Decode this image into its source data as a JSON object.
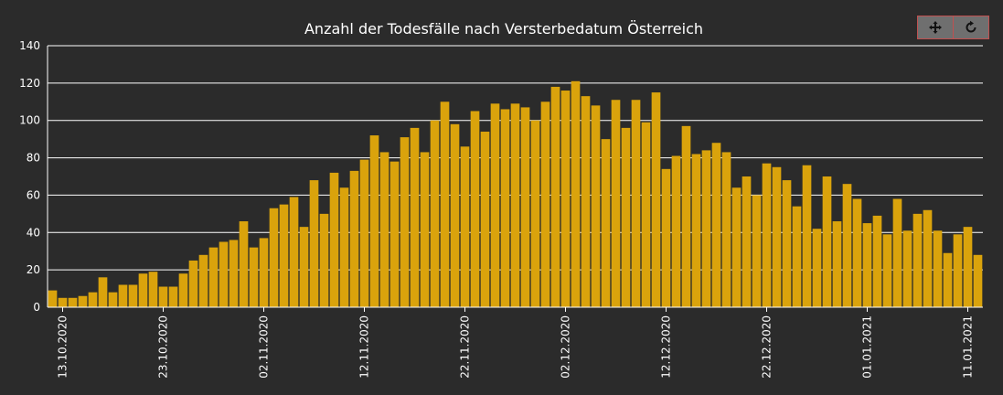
{
  "toolbar": {
    "pan_icon": "move-icon",
    "reset_icon": "reset-icon"
  },
  "chart_data": {
    "type": "bar",
    "title": "Anzahl der Todesfälle nach Versterbedatum Österreich",
    "xlabel": "",
    "ylabel": "",
    "ylim": [
      0,
      140
    ],
    "yticks": [
      0,
      20,
      40,
      60,
      80,
      100,
      120,
      140
    ],
    "grid": true,
    "bar_color": "#daa30c",
    "background": "#2b2b2b",
    "x_tick_labels": [
      "13.10.2020",
      "23.10.2020",
      "02.11.2020",
      "12.11.2020",
      "22.11.2020",
      "02.12.2020",
      "12.12.2020",
      "22.12.2020",
      "01.01.2021",
      "11.01.2021"
    ],
    "x_tick_indices": [
      1,
      11,
      21,
      31,
      41,
      51,
      61,
      71,
      81,
      91
    ],
    "categories": [
      "12.10.2020",
      "13.10.2020",
      "14.10.2020",
      "15.10.2020",
      "16.10.2020",
      "17.10.2020",
      "18.10.2020",
      "19.10.2020",
      "20.10.2020",
      "21.10.2020",
      "22.10.2020",
      "23.10.2020",
      "24.10.2020",
      "25.10.2020",
      "26.10.2020",
      "27.10.2020",
      "28.10.2020",
      "29.10.2020",
      "30.10.2020",
      "31.10.2020",
      "01.11.2020",
      "02.11.2020",
      "03.11.2020",
      "04.11.2020",
      "05.11.2020",
      "06.11.2020",
      "07.11.2020",
      "08.11.2020",
      "09.11.2020",
      "10.11.2020",
      "11.11.2020",
      "12.11.2020",
      "13.11.2020",
      "14.11.2020",
      "15.11.2020",
      "16.11.2020",
      "17.11.2020",
      "18.11.2020",
      "19.11.2020",
      "20.11.2020",
      "21.11.2020",
      "22.11.2020",
      "23.11.2020",
      "24.11.2020",
      "25.11.2020",
      "26.11.2020",
      "27.11.2020",
      "28.11.2020",
      "29.11.2020",
      "30.11.2020",
      "01.12.2020",
      "02.12.2020",
      "03.12.2020",
      "04.12.2020",
      "05.12.2020",
      "06.12.2020",
      "07.12.2020",
      "08.12.2020",
      "09.12.2020",
      "10.12.2020",
      "11.12.2020",
      "12.12.2020",
      "13.12.2020",
      "14.12.2020",
      "15.12.2020",
      "16.12.2020",
      "17.12.2020",
      "18.12.2020",
      "19.12.2020",
      "20.12.2020",
      "21.12.2020",
      "22.12.2020",
      "23.12.2020",
      "24.12.2020",
      "25.12.2020",
      "26.12.2020",
      "27.12.2020",
      "28.12.2020",
      "29.12.2020",
      "30.12.2020",
      "31.12.2020",
      "01.01.2021",
      "02.01.2021",
      "03.01.2021",
      "04.01.2021",
      "05.01.2021",
      "06.01.2021",
      "07.01.2021",
      "08.01.2021",
      "09.01.2021",
      "10.01.2021",
      "11.01.2021",
      "12.01.2021"
    ],
    "values": [
      9,
      5,
      5,
      6,
      8,
      16,
      8,
      12,
      12,
      18,
      19,
      11,
      11,
      18,
      25,
      28,
      32,
      35,
      36,
      46,
      32,
      37,
      53,
      55,
      59,
      43,
      68,
      50,
      72,
      64,
      73,
      79,
      92,
      83,
      78,
      91,
      96,
      83,
      100,
      110,
      98,
      86,
      105,
      94,
      109,
      106,
      109,
      107,
      100,
      110,
      118,
      116,
      121,
      113,
      108,
      90,
      111,
      96,
      111,
      99,
      115,
      74,
      81,
      97,
      82,
      84,
      88,
      83,
      64,
      70,
      60,
      77,
      75,
      68,
      54,
      76,
      42,
      70,
      46,
      66,
      58,
      45,
      49,
      39,
      58,
      41,
      50,
      52,
      41,
      29,
      39,
      43,
      28
    ]
  }
}
